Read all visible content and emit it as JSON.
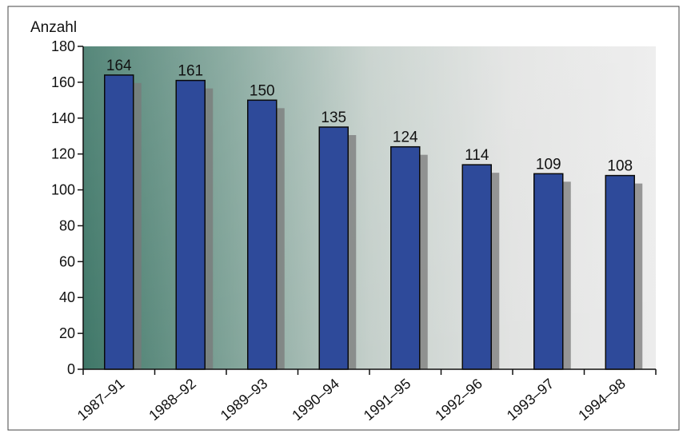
{
  "chart_data": {
    "type": "bar",
    "title": "",
    "ylabel": "Anzahl",
    "xlabel": "",
    "categories": [
      "1987–91",
      "1988–92",
      "1989–93",
      "1990–94",
      "1991–95",
      "1992–96",
      "1993–97",
      "1994–98"
    ],
    "values": [
      164,
      161,
      150,
      135,
      124,
      114,
      109,
      108
    ],
    "ylim": [
      0,
      180
    ],
    "yticks": [
      0,
      20,
      40,
      60,
      80,
      100,
      120,
      140,
      160,
      180
    ],
    "grid": false,
    "legend": "none",
    "data_labels": true
  },
  "colors": {
    "bar_fill": "#2e4a9a",
    "bar_shadow": "#7a7a7a",
    "axis": "#111111",
    "backdrop_dark": "#3d7566",
    "backdrop_light": "#e9e9e9"
  }
}
